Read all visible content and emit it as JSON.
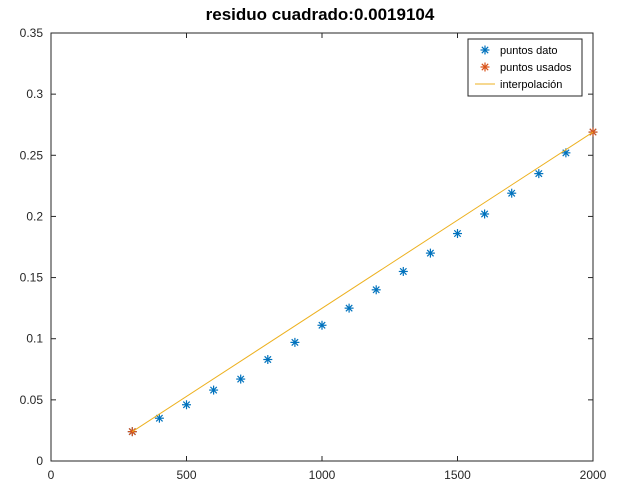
{
  "chart_data": {
    "type": "scatter",
    "title": "residuo cuadrado:0.0019104",
    "xlabel": "",
    "ylabel": "",
    "xlim": [
      0,
      2000
    ],
    "ylim": [
      0,
      0.35
    ],
    "xticks": [
      0,
      500,
      1000,
      1500,
      2000
    ],
    "yticks": [
      0,
      0.05,
      0.1,
      0.15,
      0.2,
      0.25,
      0.3,
      0.35
    ],
    "xtick_labels": [
      "0",
      "500",
      "1000",
      "1500",
      "2000"
    ],
    "ytick_labels": [
      "0",
      "0.05",
      "0.1",
      "0.15",
      "0.2",
      "0.25",
      "0.3",
      "0.35"
    ],
    "grid": false,
    "legend_position": "top-right",
    "series": [
      {
        "name": "puntos dato",
        "marker": "asterisk",
        "color": "#0072BD",
        "x": [
          300,
          400,
          500,
          600,
          700,
          800,
          900,
          1000,
          1100,
          1200,
          1300,
          1400,
          1500,
          1600,
          1700,
          1800,
          1900,
          2000
        ],
        "y": [
          0.024,
          0.035,
          0.046,
          0.058,
          0.067,
          0.083,
          0.097,
          0.111,
          0.125,
          0.14,
          0.155,
          0.17,
          0.186,
          0.202,
          0.219,
          0.235,
          0.252,
          0.269
        ]
      },
      {
        "name": "puntos usados",
        "marker": "asterisk",
        "color": "#D95319",
        "x": [
          300,
          2000
        ],
        "y": [
          0.024,
          0.269
        ]
      },
      {
        "name": "interpolación",
        "marker": "line",
        "color": "#EDB120",
        "x": [
          300,
          2000
        ],
        "y": [
          0.024,
          0.269
        ]
      }
    ]
  }
}
